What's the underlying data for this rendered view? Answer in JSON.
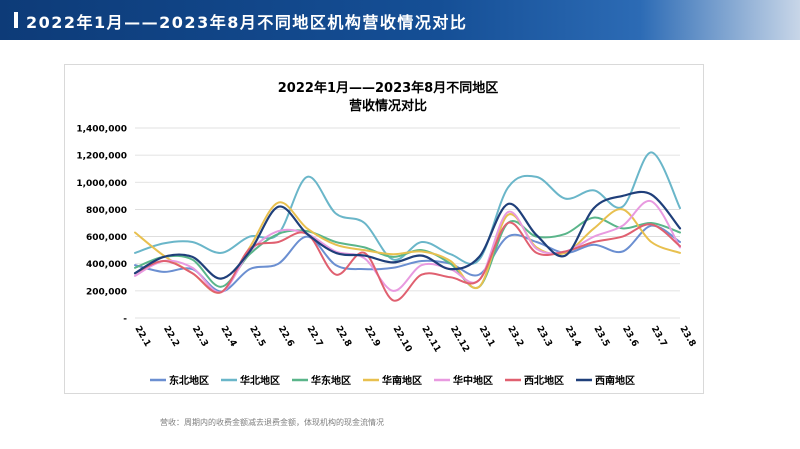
{
  "header": {
    "title": "2022年1月——2023年8月不同地区机构营收情况对比"
  },
  "footnote": "营收：周期内的收费金额减去退费金额，体现机构的现金流情况",
  "chart_data": {
    "type": "line",
    "title_line1": "2022年1月——2023年8月不同地区",
    "title_line2": "营收情况对比",
    "categories": [
      "22.1",
      "22.2",
      "22.3",
      "22.4",
      "22.5",
      "22.6",
      "22.7",
      "22.8",
      "22.9",
      "22.10",
      "22.11",
      "22.12",
      "23.1",
      "23.2",
      "23.3",
      "23.4",
      "23.5",
      "23.6",
      "23.7",
      "23.8"
    ],
    "ylim": [
      0,
      1400000
    ],
    "yticks": [
      {
        "value": 0,
        "label": "-"
      },
      {
        "value": 200000,
        "label": "200,000"
      },
      {
        "value": 400000,
        "label": "400,000"
      },
      {
        "value": 600000,
        "label": "600,000"
      },
      {
        "value": 800000,
        "label": "800,000"
      },
      {
        "value": 1000000,
        "label": "1,000,000"
      },
      {
        "value": 1200000,
        "label": "1,200,000"
      },
      {
        "value": 1400000,
        "label": "1,400,000"
      }
    ],
    "grid": true,
    "legend_position": "bottom",
    "series": [
      {
        "name": "东北地区",
        "color": "#6b8fd1",
        "values": [
          390000,
          340000,
          360000,
          195000,
          360000,
          400000,
          600000,
          390000,
          360000,
          370000,
          420000,
          400000,
          320000,
          600000,
          560000,
          480000,
          540000,
          490000,
          680000,
          560000
        ]
      },
      {
        "name": "华北地区",
        "color": "#6ab6c9",
        "values": [
          480000,
          550000,
          560000,
          480000,
          600000,
          620000,
          1040000,
          770000,
          700000,
          430000,
          560000,
          470000,
          430000,
          960000,
          1040000,
          880000,
          940000,
          820000,
          1220000,
          810000
        ]
      },
      {
        "name": "华东地区",
        "color": "#5ab58a",
        "values": [
          370000,
          450000,
          430000,
          230000,
          470000,
          620000,
          640000,
          560000,
          520000,
          450000,
          500000,
          400000,
          230000,
          700000,
          600000,
          620000,
          740000,
          660000,
          700000,
          630000
        ]
      },
      {
        "name": "华南地区",
        "color": "#e8c04f",
        "values": [
          630000,
          460000,
          330000,
          190000,
          520000,
          850000,
          660000,
          540000,
          500000,
          470000,
          490000,
          420000,
          230000,
          760000,
          520000,
          480000,
          660000,
          800000,
          560000,
          480000
        ]
      },
      {
        "name": "华中地区",
        "color": "#e89ae0",
        "values": [
          310000,
          420000,
          370000,
          190000,
          490000,
          640000,
          620000,
          490000,
          440000,
          200000,
          390000,
          360000,
          280000,
          780000,
          510000,
          490000,
          600000,
          680000,
          860000,
          520000
        ]
      },
      {
        "name": "西北地区",
        "color": "#e06070",
        "values": [
          330000,
          420000,
          330000,
          190000,
          510000,
          560000,
          620000,
          320000,
          480000,
          130000,
          320000,
          300000,
          280000,
          700000,
          480000,
          490000,
          560000,
          600000,
          690000,
          530000
        ]
      },
      {
        "name": "西南地区",
        "color": "#1f3f7a",
        "values": [
          330000,
          450000,
          450000,
          290000,
          490000,
          820000,
          620000,
          480000,
          460000,
          410000,
          460000,
          360000,
          450000,
          840000,
          610000,
          460000,
          810000,
          900000,
          910000,
          660000
        ]
      }
    ]
  }
}
